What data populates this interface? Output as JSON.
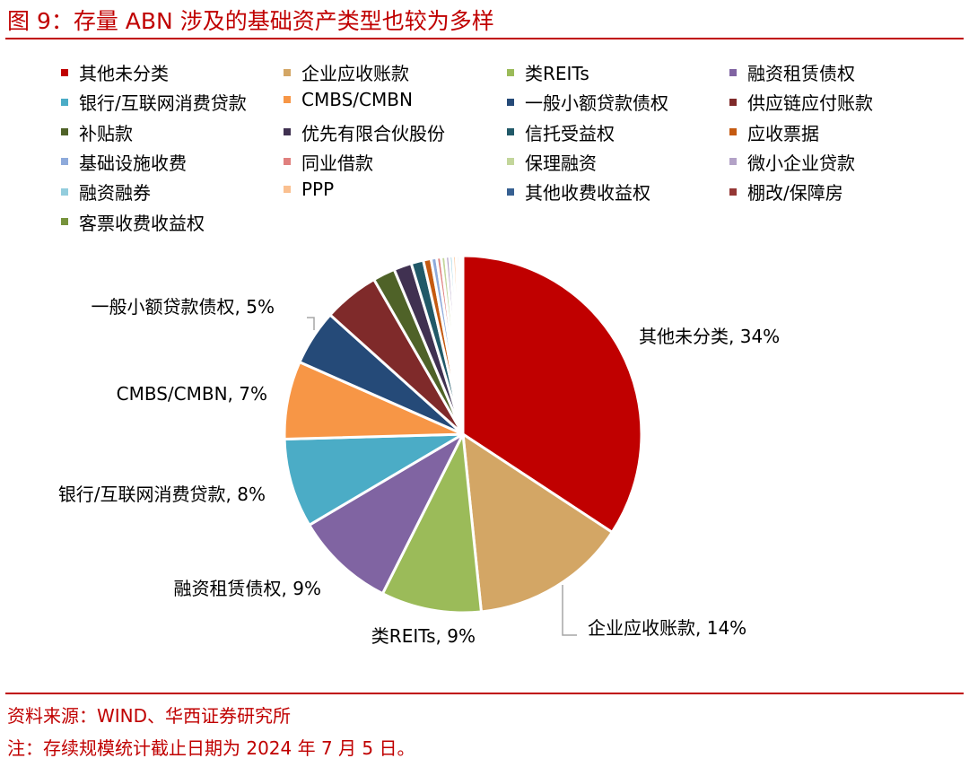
{
  "header": {
    "title": "图 9：存量 ABN 涉及的基础资产类型也较为多样"
  },
  "footer": {
    "source": "资料来源：WIND、华西证券研究所",
    "note": "注：存续规模统计截止日期为 2024 年 7 月 5 日。"
  },
  "chart_data": {
    "type": "pie",
    "title": "",
    "legend_position": "top",
    "series": [
      {
        "name": "其他未分类",
        "value": 34,
        "color": "#c00000",
        "label": "其他未分类, 34%"
      },
      {
        "name": "企业应收账款",
        "value": 14,
        "color": "#d3a665",
        "label": "企业应收账款, 14%"
      },
      {
        "name": "类REITs",
        "value": 9,
        "color": "#9bbb59",
        "label": "类REITs, 9%"
      },
      {
        "name": "融资租赁债权",
        "value": 9,
        "color": "#8064a2",
        "label": "融资租赁债权, 9%"
      },
      {
        "name": "银行/互联网消费贷款",
        "value": 8,
        "color": "#4bacc6",
        "label": "银行/互联网消费贷款, 8%"
      },
      {
        "name": "CMBS/CMBN",
        "value": 7,
        "color": "#f79646",
        "label": "CMBS/CMBN, 7%"
      },
      {
        "name": "一般小额贷款债权",
        "value": 5,
        "color": "#254a78",
        "label": "一般小额贷款债权, 5%"
      },
      {
        "name": "供应链应付账款",
        "value": 5,
        "color": "#7f2a2a",
        "label": ""
      },
      {
        "name": "补贴款",
        "value": 2,
        "color": "#4f6228",
        "label": ""
      },
      {
        "name": "优先有限合伙股份",
        "value": 1.6,
        "color": "#403151",
        "label": ""
      },
      {
        "name": "信托受益权",
        "value": 1.1,
        "color": "#215968",
        "label": ""
      },
      {
        "name": "应收票据",
        "value": 0.7,
        "color": "#c55a11",
        "label": ""
      },
      {
        "name": "基础设施收费",
        "value": 0.5,
        "color": "#8eaadb",
        "label": ""
      },
      {
        "name": "同业借款",
        "value": 0.4,
        "color": "#e0807e",
        "label": ""
      },
      {
        "name": "保理融资",
        "value": 0.4,
        "color": "#c3d69b",
        "label": ""
      },
      {
        "name": "微小企业贷款",
        "value": 0.35,
        "color": "#b3a2c7",
        "label": ""
      },
      {
        "name": "融资融券",
        "value": 0.3,
        "color": "#93cddd",
        "label": ""
      },
      {
        "name": "PPP",
        "value": 0.3,
        "color": "#fac090",
        "label": ""
      },
      {
        "name": "其他收费收益权",
        "value": 0.25,
        "color": "#376092",
        "label": ""
      },
      {
        "name": "棚改/保障房",
        "value": 0.2,
        "color": "#953735",
        "label": ""
      },
      {
        "name": "客票收费收益权",
        "value": 0.15,
        "color": "#77933c",
        "label": ""
      }
    ]
  }
}
